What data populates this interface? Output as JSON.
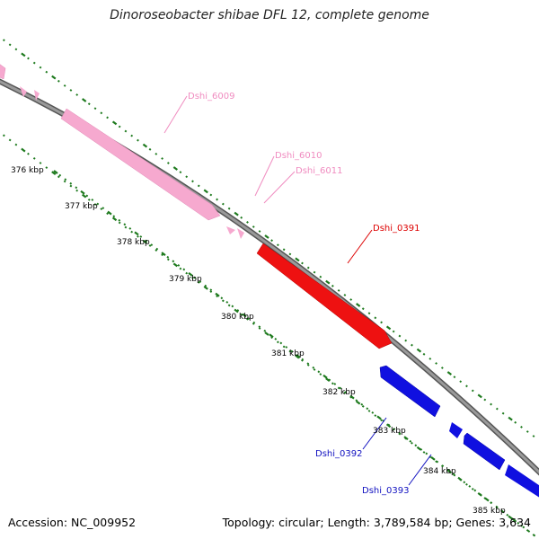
{
  "title": "Dinoroseobacter shibae DFL 12, complete genome",
  "footer": {
    "accession": "Accession: NC_009952",
    "summary": "Topology: circular; Length: 3,789,584 bp; Genes: 3,634"
  },
  "colors": {
    "backbone": "#7a7a7a",
    "tick": "#1e7a1e",
    "neighbor_gene": "#f2a0c8",
    "focus_gene": "#ee1111",
    "downstream_gene": "#1010e0"
  },
  "ticks": [
    "376 kbp",
    "377 kbp",
    "378 kbp",
    "379 kbp",
    "380 kbp",
    "381 kbp",
    "382 kbp",
    "383 kbp",
    "384 kbp",
    "385 kbp"
  ],
  "genes": [
    {
      "id": "Dshi_6009",
      "color": "#f08cc0"
    },
    {
      "id": "Dshi_6010",
      "color": "#f08cc0"
    },
    {
      "id": "Dshi_6011",
      "color": "#f08cc0"
    },
    {
      "id": "Dshi_0391",
      "color": "#dd0000"
    },
    {
      "id": "Dshi_0392",
      "color": "#1010c0"
    },
    {
      "id": "Dshi_0393",
      "color": "#1010c0"
    }
  ]
}
